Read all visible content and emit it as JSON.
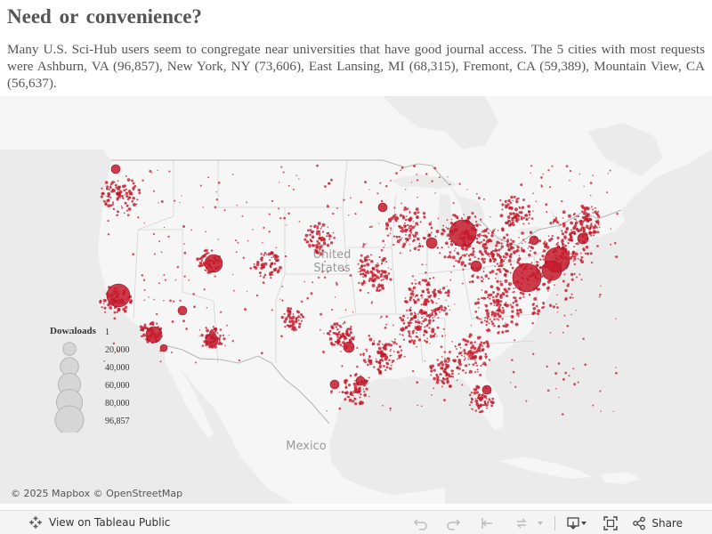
{
  "header": {
    "title": "Need or convenience?",
    "subtitle": "Many U.S. Sci-Hub users seem to congregate near universities that have good journal access. The 5 cities with most requests were Ashburn, VA (96,857), New York, NY (73,606), East Lansing, MI (68,315), Fremont, CA (59,389), Mountain View, CA (56,637)."
  },
  "map": {
    "labels": {
      "us": "United States",
      "mexico": "Mexico"
    },
    "attribution": "© 2025 Mapbox © OpenStreetMap",
    "colors": {
      "water": "#ebebeb",
      "land": "#f6f6f6",
      "border": "#cfcfcf",
      "marker": "#c41a2b"
    }
  },
  "legend": {
    "title": "Downloads",
    "entries": [
      {
        "label": "1",
        "value": 1
      },
      {
        "label": "20,000",
        "value": 20000
      },
      {
        "label": "40,000",
        "value": 40000
      },
      {
        "label": "60,000",
        "value": 60000
      },
      {
        "label": "80,000",
        "value": 80000
      },
      {
        "label": "96,857",
        "value": 96857
      }
    ]
  },
  "toolbar": {
    "view_label": "View on Tableau Public",
    "share_label": "Share",
    "icons": [
      "tableau-icon",
      "undo-icon",
      "redo-icon",
      "revert-icon",
      "refresh-icon",
      "pause-icon",
      "download-icon",
      "fullscreen-icon",
      "share-icon"
    ]
  }
}
